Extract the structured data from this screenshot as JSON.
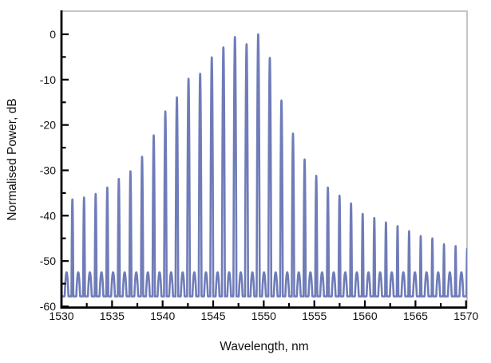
{
  "figure": {
    "background": "#ffffff"
  },
  "chart_data": {
    "type": "line",
    "title": "",
    "xlabel": "Wavelength, nm",
    "ylabel": "Normalised Power, dB",
    "xlim": [
      1530,
      1570.1
    ],
    "ylim": [
      -60,
      5.1
    ],
    "grid": false,
    "legend": null,
    "x_ticks": [
      1530,
      1535,
      1540,
      1545,
      1550,
      1555,
      1560,
      1565,
      1570
    ],
    "x_minor_ticks": [
      1532.5,
      1537.5,
      1542.5,
      1547.5,
      1552.5,
      1557.5,
      1562.5,
      1567.5
    ],
    "y_ticks": [
      0,
      -10,
      -20,
      -30,
      -40,
      -50,
      -60
    ],
    "y_minor_ticks": [
      -5,
      -15,
      -25,
      -35,
      -45,
      -55
    ],
    "curve_color": "#6f7cb8",
    "axis_color": "#000000",
    "frame_color": "#c5c5c5",
    "description": "Optical comb spectrum: narrow peaks spaced ~1.15 nm with envelope peaking at 0 dB near 1549.5 nm, noise floor ~ -57.8 dB",
    "comb_spacing_nm": 1.148,
    "peaks": [
      [
        1529.93,
        -38.5
      ],
      [
        1531.08,
        -36.4
      ],
      [
        1532.23,
        -36.0
      ],
      [
        1533.38,
        -35.2
      ],
      [
        1534.53,
        -33.8
      ],
      [
        1535.67,
        -31.9
      ],
      [
        1536.82,
        -30.2
      ],
      [
        1537.97,
        -27.0
      ],
      [
        1539.12,
        -22.3
      ],
      [
        1540.27,
        -17.0
      ],
      [
        1541.41,
        -13.9
      ],
      [
        1542.56,
        -9.8
      ],
      [
        1543.71,
        -8.7
      ],
      [
        1544.86,
        -5.1
      ],
      [
        1546.01,
        -2.9
      ],
      [
        1547.15,
        -0.6
      ],
      [
        1548.3,
        -2.2
      ],
      [
        1549.45,
        0.0
      ],
      [
        1550.6,
        -5.2
      ],
      [
        1551.75,
        -14.6
      ],
      [
        1552.89,
        -21.9
      ],
      [
        1554.04,
        -27.6
      ],
      [
        1555.19,
        -31.2
      ],
      [
        1556.34,
        -33.8
      ],
      [
        1557.49,
        -35.6
      ],
      [
        1558.63,
        -37.3
      ],
      [
        1559.78,
        -39.6
      ],
      [
        1560.93,
        -40.5
      ],
      [
        1562.08,
        -41.5
      ],
      [
        1563.23,
        -42.3
      ],
      [
        1564.37,
        -43.4
      ],
      [
        1565.52,
        -44.5
      ],
      [
        1566.67,
        -45.0
      ],
      [
        1567.82,
        -46.3
      ],
      [
        1568.97,
        -46.7
      ],
      [
        1570.11,
        -47.3
      ]
    ],
    "model": {
      "peak_curvature_db_per_nm2": 2500,
      "sidelobe_level_db": -52.5,
      "sidelobe_curvature_db_per_nm2": 150,
      "noise_floor_db": -57.8
    }
  }
}
